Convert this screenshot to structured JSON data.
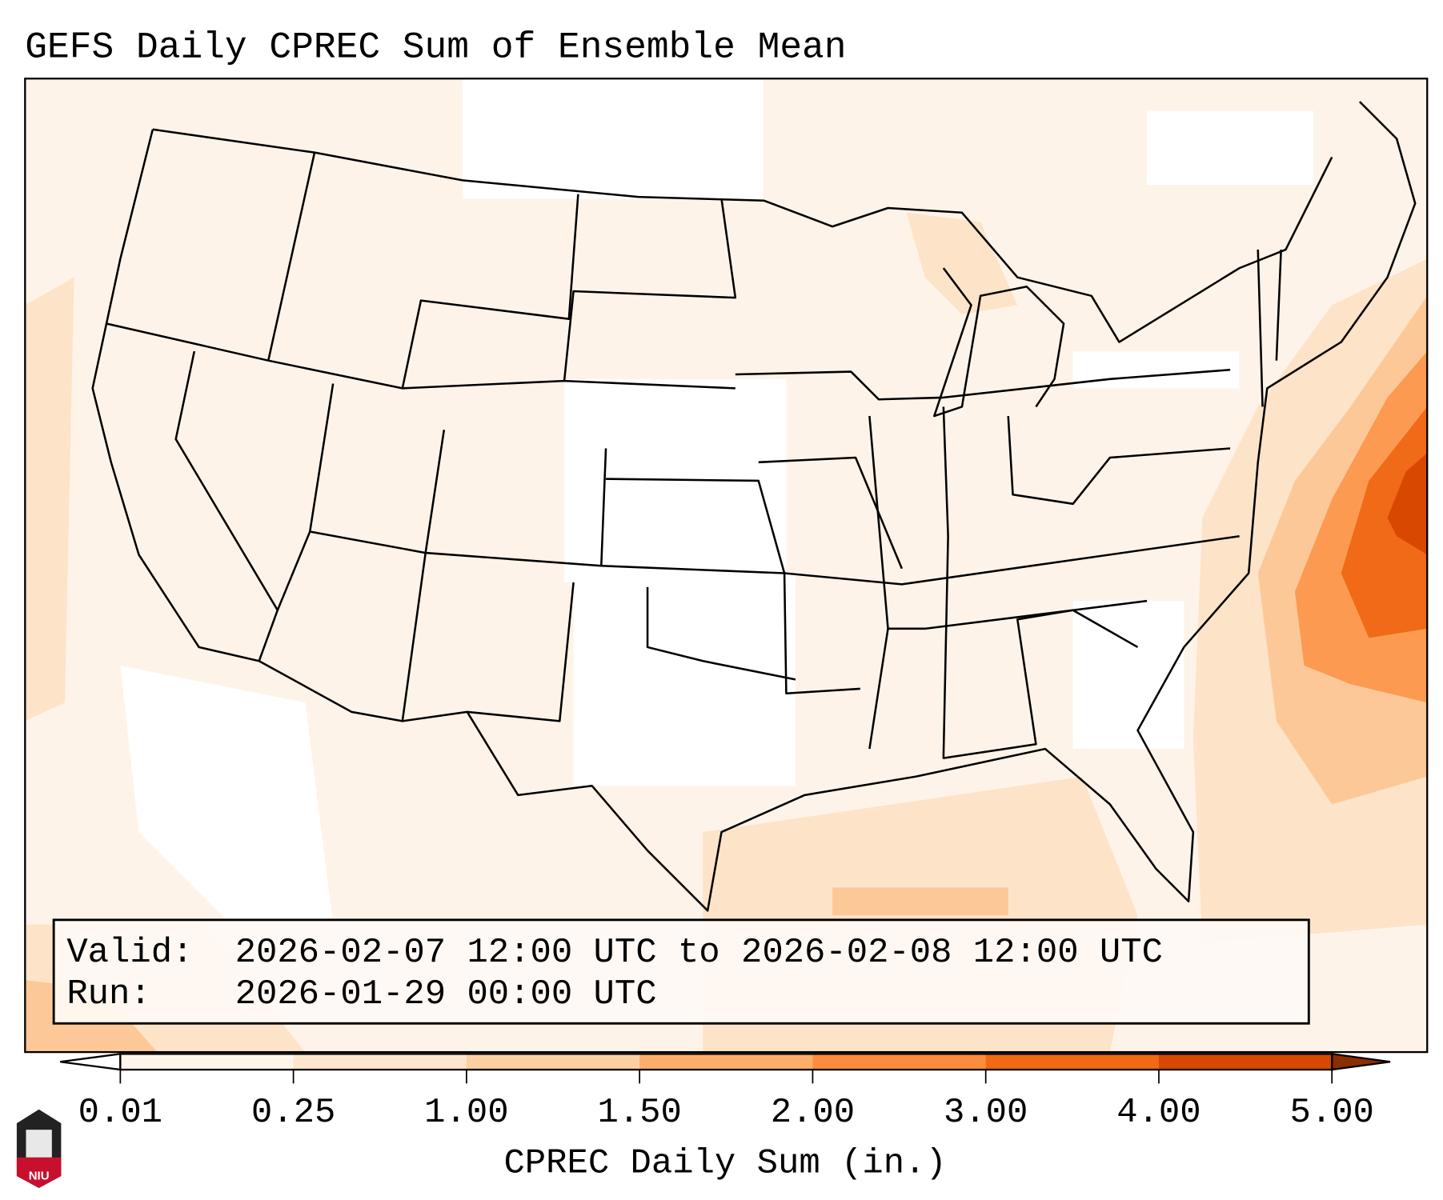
{
  "title": "GEFS Daily CPREC Sum of Ensemble Mean",
  "info_box": {
    "valid_label": "Valid:",
    "valid_value": "2026-02-07 12:00 UTC to 2026-02-08 12:00 UTC",
    "run_label": "Run:",
    "run_value": "2026-01-29 00:00 UTC"
  },
  "colorbar": {
    "label": "CPREC Daily Sum (in.)",
    "ticks": [
      "0.01",
      "0.25",
      "1.00",
      "1.50",
      "2.00",
      "3.00",
      "4.00",
      "5.00"
    ],
    "colors": [
      "#fff5eb",
      "#fee6ce",
      "#fdd0a2",
      "#fdae6b",
      "#fd8d3c",
      "#f16913",
      "#d94801"
    ],
    "under_color": "#ffffff",
    "over_color": "#8c2d04"
  },
  "logo": {
    "text": "NIU"
  }
}
